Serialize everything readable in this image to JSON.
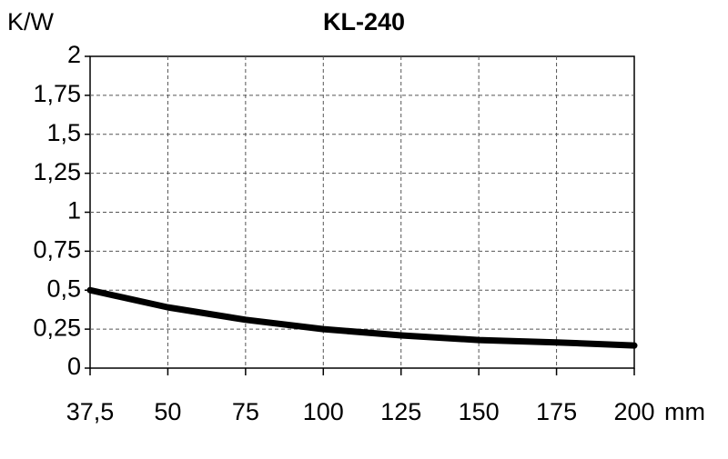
{
  "chart_data": {
    "type": "line",
    "title": "KL-240",
    "y_label": "K/W",
    "x_label": "mm",
    "x": [
      37.5,
      50,
      75,
      100,
      125,
      150,
      175,
      200
    ],
    "series": [
      {
        "name": "KL-240",
        "color": "#000000",
        "values": [
          0.5,
          0.39,
          0.31,
          0.25,
          0.21,
          0.18,
          0.165,
          0.145
        ]
      }
    ],
    "xlim": [
      37.5,
      200
    ],
    "xticks": [
      {
        "value": 37.5,
        "label": "37,5"
      },
      50,
      75,
      100,
      125,
      150,
      175,
      200
    ],
    "ylim": [
      0,
      2
    ],
    "yticks": [
      0,
      {
        "value": 0.25,
        "label": "0,25"
      },
      {
        "value": 0.5,
        "label": "0,5"
      },
      {
        "value": 0.75,
        "label": "0,75"
      },
      1,
      {
        "value": 1.25,
        "label": "1,25"
      },
      {
        "value": 1.5,
        "label": "1,5"
      },
      {
        "value": 1.75,
        "label": "1,75"
      },
      2
    ],
    "grid": true
  }
}
